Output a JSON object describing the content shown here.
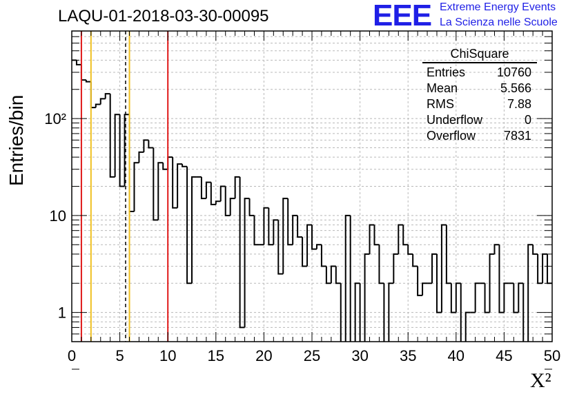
{
  "chart_data": {
    "type": "histogram",
    "title": "LAQU-01-2018-03-30-00095",
    "xlabel": "X²",
    "ylabel": "Entries/bin",
    "ylog": true,
    "xlim": [
      0,
      50
    ],
    "ylim": [
      0.5,
      800
    ],
    "bin_width": 0.5,
    "grid": true,
    "values": [
      400,
      360,
      250,
      240,
      130,
      140,
      160,
      180,
      25,
      110,
      20,
      110,
      11,
      35,
      45,
      60,
      50,
      9,
      35,
      30,
      40,
      12,
      34,
      32,
      2,
      25,
      25,
      15,
      22,
      13,
      14,
      20,
      10,
      15,
      25,
      0.7,
      15,
      10,
      5,
      5,
      12,
      5,
      9,
      2.5,
      15,
      5,
      10,
      6,
      3,
      8,
      4.5,
      5,
      3,
      2,
      3,
      2,
      0,
      10,
      0,
      2,
      0,
      4,
      8,
      5,
      2,
      0,
      2,
      4,
      8,
      5,
      4,
      3,
      1.5,
      2,
      2,
      4,
      1,
      8,
      2,
      1,
      2,
      0,
      1,
      1,
      2,
      2,
      1,
      4,
      5,
      1,
      2,
      2,
      1,
      2,
      0,
      5,
      4,
      2,
      4,
      2
    ],
    "vertical_lines": [
      {
        "x": 1.0,
        "color": "#e01818",
        "style": "solid"
      },
      {
        "x": 2.0,
        "color": "#f0c020",
        "style": "solid"
      },
      {
        "x": 5.6,
        "color": "#000000",
        "style": "dashed"
      },
      {
        "x": 6.0,
        "color": "#f0c020",
        "style": "solid"
      },
      {
        "x": 10.0,
        "color": "#e01818",
        "style": "solid"
      }
    ],
    "x_ticks": [
      "0",
      "5",
      "10",
      "15",
      "20",
      "25",
      "30",
      "35",
      "40",
      "45",
      "50"
    ],
    "y_ticks": [
      {
        "value": 1,
        "label": "1"
      },
      {
        "value": 10,
        "label": "10"
      },
      {
        "value": 100,
        "label": "10²"
      }
    ]
  },
  "stats_box": {
    "title": "ChiSquare",
    "rows": [
      {
        "label": "Entries",
        "value": "10760"
      },
      {
        "label": "Mean",
        "value": "5.566"
      },
      {
        "label": "RMS",
        "value": "7.88"
      },
      {
        "label": "Underflow",
        "value": "0"
      },
      {
        "label": "Overflow",
        "value": "7831"
      }
    ]
  },
  "logo": {
    "mark": "EEE",
    "line1": "Extreme Energy Events",
    "line2": "La Scienza nelle Scuole"
  },
  "colors": {
    "logo": "#1f1fe6",
    "line_red": "#e01818",
    "line_yellow": "#f0c020"
  }
}
